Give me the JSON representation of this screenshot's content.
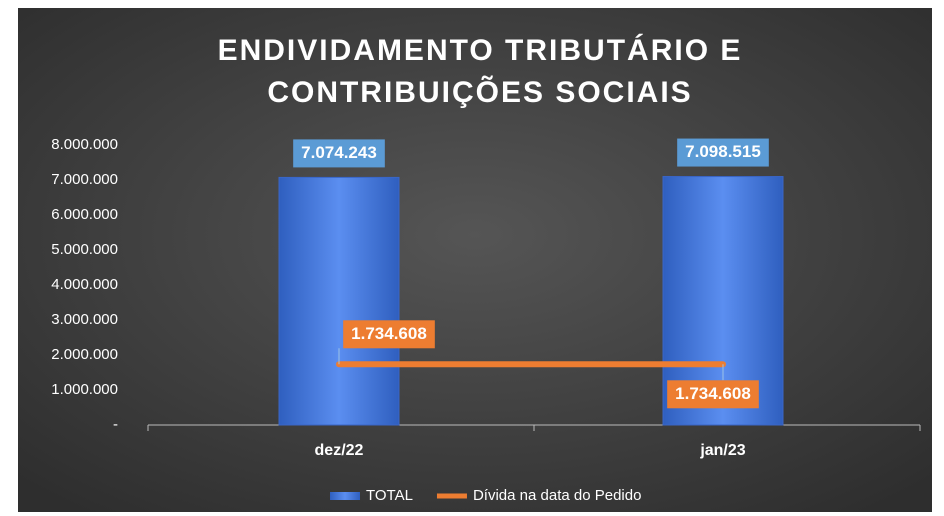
{
  "chart_data": {
    "type": "bar",
    "title": [
      "ENDIVIDAMENTO TRIBUTÁRIO E",
      "CONTRIBUIÇÕES SOCIAIS"
    ],
    "categories": [
      "dez/22",
      "jan/23"
    ],
    "series": [
      {
        "name": "TOTAL",
        "type": "bar",
        "color": "#4472c4",
        "values": [
          7074243,
          7098515
        ],
        "value_labels": [
          "7.074.243",
          "7.098.515"
        ]
      },
      {
        "name": "Dívida na data do Pedido",
        "type": "line",
        "color": "#ed7d31",
        "values": [
          1734608,
          1734608
        ],
        "value_labels": [
          "1.734.608",
          "1.734.608"
        ]
      }
    ],
    "ylim": [
      0,
      8000000
    ],
    "yticks": [
      {
        "value": 0,
        "label": "-"
      },
      {
        "value": 1000000,
        "label": "1.000.000"
      },
      {
        "value": 2000000,
        "label": "2.000.000"
      },
      {
        "value": 3000000,
        "label": "3.000.000"
      },
      {
        "value": 4000000,
        "label": "4.000.000"
      },
      {
        "value": 5000000,
        "label": "5.000.000"
      },
      {
        "value": 6000000,
        "label": "6.000.000"
      },
      {
        "value": 7000000,
        "label": "7.000.000"
      },
      {
        "value": 8000000,
        "label": "8.000.000"
      }
    ],
    "grid": false,
    "legend": "bottom"
  }
}
